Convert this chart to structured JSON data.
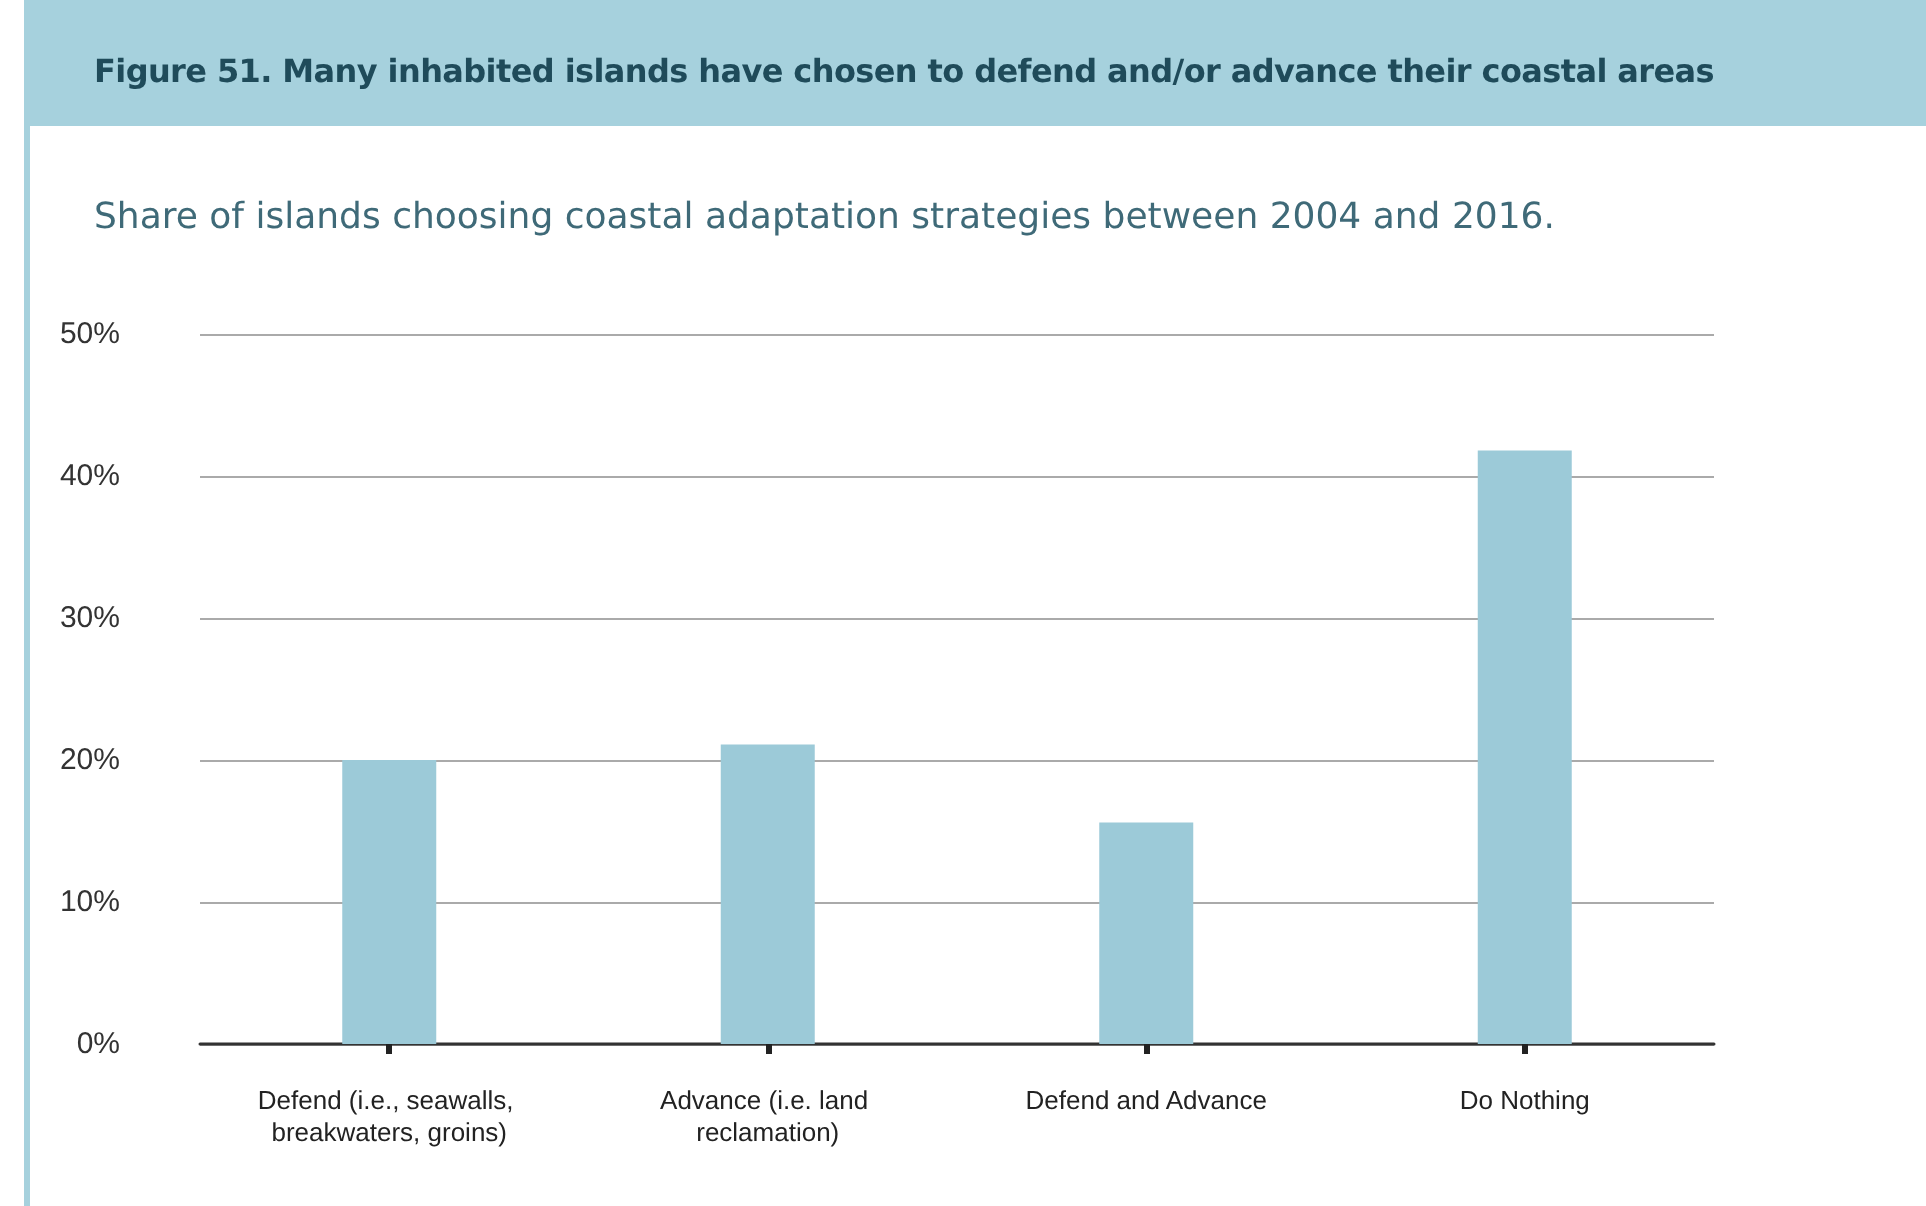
{
  "chart_data": {
    "type": "bar",
    "title": "Figure 51. Many inhabited islands have chosen to defend and/or advance their coastal areas",
    "subtitle": "Share of islands choosing coastal adaptation strategies between 2004 and 2016.",
    "categories": [
      "Defend (i.e., seawalls, breakwaters, groins)",
      "Advance (i.e. land reclamation)",
      "Defend and Advance",
      "Do Nothing"
    ],
    "values": [
      20,
      21.1,
      15.6,
      41.8
    ],
    "color": "#9ccad8",
    "ylim": [
      0,
      50
    ],
    "yticks": [
      {
        "value": 0,
        "label": "0%"
      },
      {
        "value": 10,
        "label": "10%"
      },
      {
        "value": 20,
        "label": "20%"
      },
      {
        "value": 30,
        "label": "30%"
      },
      {
        "value": 40,
        "label": "40%"
      },
      {
        "value": 50,
        "label": "50%"
      }
    ],
    "grid": "y"
  }
}
